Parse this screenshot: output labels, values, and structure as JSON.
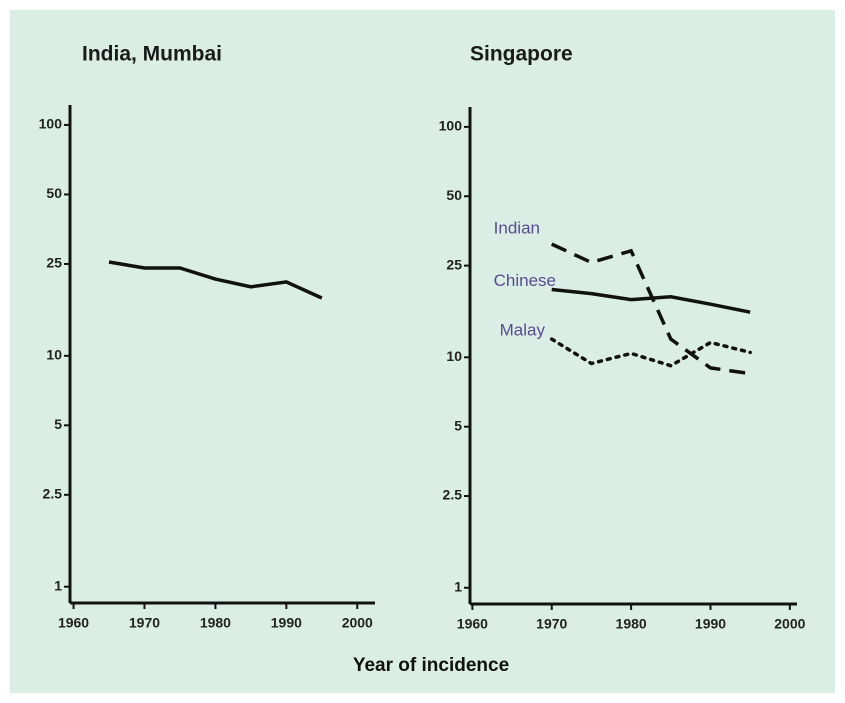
{
  "xlabel": "Year of incidence",
  "chart_data": [
    {
      "type": "line",
      "title": "India, Mumbai",
      "log_y": true,
      "xlim": [
        1959.5,
        2002.5
      ],
      "xticks": [
        1960,
        1970,
        1980,
        1990,
        2000
      ],
      "ylim": [
        0.85,
        122
      ],
      "yticks": [
        1,
        2.5,
        5,
        10,
        25,
        50,
        100
      ],
      "series": [
        {
          "color": "#111111",
          "line_style": "solid",
          "x": [
            1965,
            1970,
            1975,
            1980,
            1985,
            1990,
            1995
          ],
          "values": [
            25.5,
            24,
            24,
            21.5,
            19.9,
            20.9,
            17.8
          ]
        }
      ]
    },
    {
      "type": "line",
      "title": "Singapore",
      "log_y": true,
      "xlim": [
        1959.7,
        2000.9
      ],
      "xticks": [
        1960,
        1970,
        1980,
        1990,
        2000
      ],
      "ylim": [
        0.85,
        122
      ],
      "yticks": [
        1,
        2.5,
        5,
        10,
        25,
        50,
        100
      ],
      "series": [
        {
          "name": "Indian",
          "color": "#111111",
          "label_color": "#5a4a8c",
          "line_style": "dashed",
          "x": [
            1970,
            1975,
            1980,
            1985,
            1990,
            1995
          ],
          "values": [
            31,
            25.8,
            29,
            12,
            9,
            8.5
          ]
        },
        {
          "name": "Chinese",
          "color": "#111111",
          "label_color": "#5a4a8c",
          "line_style": "solid",
          "x": [
            1970,
            1975,
            1980,
            1985,
            1990,
            1995
          ],
          "values": [
            19.7,
            18.9,
            17.8,
            18.3,
            17,
            15.7
          ]
        },
        {
          "name": "Malay",
          "color": "#111111",
          "label_color": "#5a4a8c",
          "line_style": "dotted",
          "x": [
            1970,
            1975,
            1980,
            1985,
            1990,
            1995
          ],
          "values": [
            12,
            9.4,
            10.4,
            9.2,
            11.6,
            10.5
          ]
        }
      ]
    }
  ]
}
